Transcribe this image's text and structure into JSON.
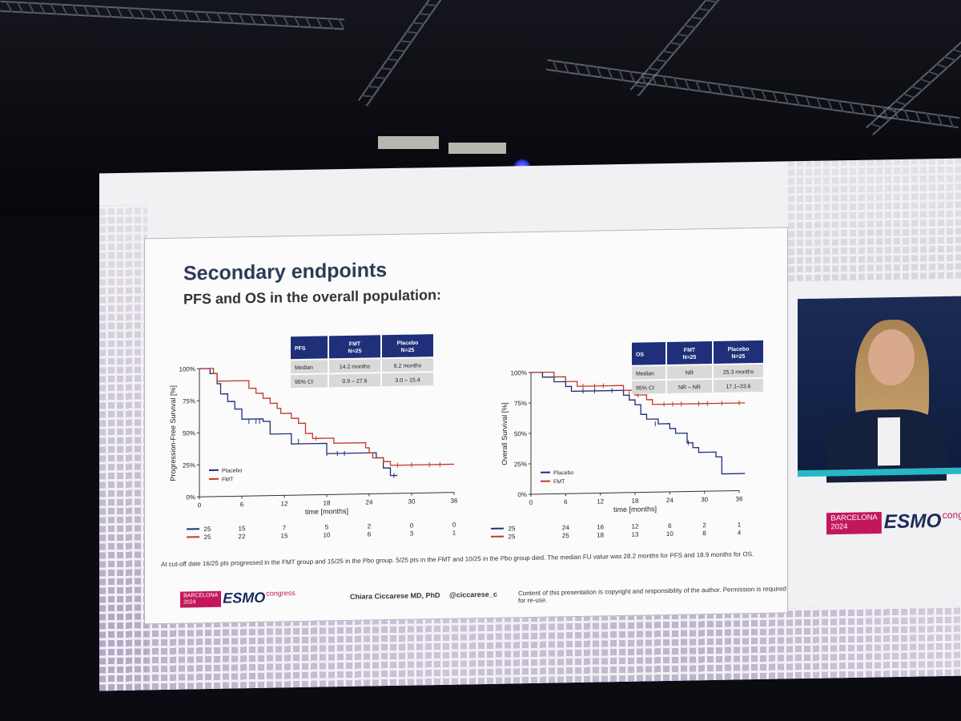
{
  "slide": {
    "title": "Secondary endpoints",
    "subtitle": "PFS and OS in the overall population:",
    "footnote": "At cut-off date 16/25 pts progressed in the FMT group and 15/25 in the Pbo group. 5/25 pts in the FMT and 10/25 in the Pbo group died. The median FU value was 28.2 months for PFS and 18.9 months for OS.",
    "author": "Chiara Ciccarese MD, PhD",
    "handle": "@ciccarese_c",
    "copyright": "Content of this presentation is copyright and responsibility of the author. Permission is required for re-use."
  },
  "logo": {
    "city": "BARCELONA",
    "year": "2024",
    "brand": "ESMO",
    "suffix": "congress"
  },
  "colors": {
    "fmt": "#c0392b",
    "placebo": "#1f2f7a",
    "table_header": "#1f2f7a",
    "table_row": "#d9d9d9"
  },
  "chart_data": [
    {
      "type": "line",
      "chart": "kaplan-meier",
      "ylabel": "Progression-Free Survival [%]",
      "xlabel": "time [months]",
      "yticks": [
        "0%",
        "25%",
        "50%",
        "75%",
        "100%"
      ],
      "xticks": [
        "0",
        "6",
        "12",
        "18",
        "24",
        "30",
        "36"
      ],
      "xlim": [
        0,
        36
      ],
      "ylim": [
        0,
        100
      ],
      "legend": [
        "Placebo",
        "FMT"
      ],
      "table": {
        "headers": [
          "PFS",
          "FMT\nN=25",
          "Placebo\nN=25"
        ],
        "rows": [
          [
            "Median",
            "14.2 months",
            "9.2 months"
          ],
          [
            "95% CI",
            "0.9 – 27.6",
            "3.0 – 15.4"
          ]
        ]
      },
      "series": [
        {
          "name": "Placebo",
          "points": [
            [
              0,
              100
            ],
            [
              1.5,
              96
            ],
            [
              2.5,
              88
            ],
            [
              3,
              80
            ],
            [
              4,
              74
            ],
            [
              5,
              68
            ],
            [
              6,
              60
            ],
            [
              9,
              58
            ],
            [
              10,
              48
            ],
            [
              13,
              40
            ],
            [
              15,
              40
            ],
            [
              18,
              32
            ],
            [
              25,
              28
            ],
            [
              26,
              20
            ],
            [
              27,
              14
            ],
            [
              28,
              14
            ]
          ],
          "censored": [
            [
              7,
              58
            ],
            [
              8,
              58
            ],
            [
              8.5,
              58
            ],
            [
              14,
              42
            ],
            [
              18,
              32
            ],
            [
              19.5,
              32
            ],
            [
              20.5,
              32
            ],
            [
              27.5,
              14
            ]
          ]
        },
        {
          "name": "FMT",
          "points": [
            [
              0,
              100
            ],
            [
              2,
              96
            ],
            [
              2.5,
              90
            ],
            [
              6,
              90
            ],
            [
              7,
              84
            ],
            [
              8,
              80
            ],
            [
              9,
              76
            ],
            [
              10,
              72
            ],
            [
              11,
              68
            ],
            [
              11.5,
              64
            ],
            [
              13,
              60
            ],
            [
              14,
              56
            ],
            [
              15,
              48
            ],
            [
              16,
              44
            ],
            [
              17,
              44
            ],
            [
              18,
              44
            ],
            [
              19,
              40
            ],
            [
              23,
              40
            ],
            [
              23.5,
              36
            ],
            [
              24,
              32
            ],
            [
              24.5,
              28
            ],
            [
              26,
              25
            ],
            [
              27,
              22
            ],
            [
              36,
              22
            ]
          ],
          "censored": [
            [
              16.5,
              44
            ],
            [
              28,
              22
            ],
            [
              30,
              22
            ],
            [
              32.5,
              22
            ],
            [
              34,
              22
            ]
          ]
        }
      ],
      "at_risk": {
        "x": [
          0,
          6,
          12,
          18,
          24,
          30,
          36
        ],
        "Placebo": [
          25,
          15,
          7,
          5,
          2,
          0,
          0
        ],
        "FMT": [
          25,
          22,
          15,
          10,
          6,
          3,
          1
        ]
      }
    },
    {
      "type": "line",
      "chart": "kaplan-meier",
      "ylabel": "Overall Survival [%]",
      "xlabel": "time [months]",
      "yticks": [
        "0%",
        "25%",
        "50%",
        "75%",
        "100%"
      ],
      "xticks": [
        "0",
        "6",
        "12",
        "18",
        "24",
        "30",
        "36"
      ],
      "xlim": [
        0,
        36
      ],
      "ylim": [
        0,
        100
      ],
      "legend": [
        "Placebo",
        "FMT"
      ],
      "table": {
        "headers": [
          "OS",
          "FMT\nN=25",
          "Placebo\nN=25"
        ],
        "rows": [
          [
            "Median",
            "NR",
            "25.3 months"
          ],
          [
            "95% CI",
            "NR – NR",
            "17.1–33.6"
          ]
        ]
      },
      "series": [
        {
          "name": "Placebo",
          "points": [
            [
              0,
              100
            ],
            [
              2,
              96
            ],
            [
              4,
              92
            ],
            [
              6,
              88
            ],
            [
              7,
              84
            ],
            [
              13,
              84
            ],
            [
              16,
              80
            ],
            [
              17,
              76
            ],
            [
              18,
              72
            ],
            [
              19,
              64
            ],
            [
              20,
              60
            ],
            [
              22,
              56
            ],
            [
              24,
              52
            ],
            [
              25,
              48
            ],
            [
              27,
              40
            ],
            [
              28,
              36
            ],
            [
              29,
              32
            ],
            [
              32,
              28
            ],
            [
              33,
              14
            ],
            [
              37,
              14
            ]
          ],
          "censored": [
            [
              9,
              84
            ],
            [
              11,
              84
            ],
            [
              14,
              84
            ],
            [
              21.5,
              56
            ],
            [
              27.2,
              40
            ]
          ]
        },
        {
          "name": "FMT",
          "points": [
            [
              0,
              100
            ],
            [
              4,
              96
            ],
            [
              6,
              92
            ],
            [
              8,
              88
            ],
            [
              14,
              88
            ],
            [
              16,
              84
            ],
            [
              18,
              80
            ],
            [
              20,
              76
            ],
            [
              21,
              72
            ],
            [
              37,
              72
            ]
          ],
          "censored": [
            [
              9,
              88
            ],
            [
              11,
              88
            ],
            [
              12.5,
              88
            ],
            [
              17,
              82
            ],
            [
              18.5,
              80
            ],
            [
              23,
              72
            ],
            [
              24.5,
              72
            ],
            [
              26,
              72
            ],
            [
              29,
              72
            ],
            [
              30.5,
              72
            ],
            [
              33,
              72
            ],
            [
              36,
              72
            ]
          ]
        }
      ],
      "at_risk": {
        "x": [
          0,
          6,
          12,
          18,
          24,
          30,
          36
        ],
        "Placebo": [
          25,
          24,
          16,
          12,
          6,
          2,
          1
        ],
        "FMT": [
          25,
          25,
          18,
          13,
          10,
          8,
          4
        ]
      }
    }
  ]
}
